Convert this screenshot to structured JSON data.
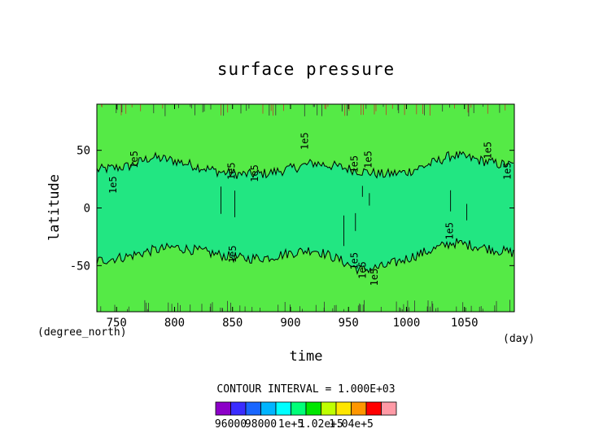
{
  "chart_data": {
    "type": "heatmap",
    "title": "surface pressure",
    "xlabel": "time",
    "ylabel": "latitude",
    "x_unit": "(day)",
    "y_unit": "(degree_north)",
    "xlim": [
      733,
      1093
    ],
    "ylim": [
      -90,
      90
    ],
    "x_ticks": [
      750,
      800,
      850,
      900,
      950,
      1000,
      1050
    ],
    "y_ticks": [
      50,
      0,
      -50
    ],
    "contour_interval_text": "CONTOUR INTERVAL = 1.000E+03",
    "contour_labels": [
      "1e5"
    ],
    "boundary_contours": [
      {
        "level": 100000,
        "points": [
          [
            733,
            33
          ],
          [
            760,
            36
          ],
          [
            780,
            44
          ],
          [
            800,
            41
          ],
          [
            820,
            36
          ],
          [
            840,
            31
          ],
          [
            860,
            29
          ],
          [
            880,
            30
          ],
          [
            900,
            34
          ],
          [
            920,
            39
          ],
          [
            940,
            36
          ],
          [
            960,
            32
          ],
          [
            980,
            29
          ],
          [
            1000,
            31
          ],
          [
            1020,
            38
          ],
          [
            1040,
            46
          ],
          [
            1060,
            42
          ],
          [
            1080,
            38
          ],
          [
            1093,
            37
          ]
        ]
      },
      {
        "level": 100000,
        "points": [
          [
            733,
            -46
          ],
          [
            760,
            -42
          ],
          [
            780,
            -37
          ],
          [
            800,
            -34
          ],
          [
            820,
            -37
          ],
          [
            840,
            -41
          ],
          [
            860,
            -44
          ],
          [
            880,
            -43
          ],
          [
            900,
            -39
          ],
          [
            920,
            -36
          ],
          [
            940,
            -44
          ],
          [
            960,
            -54
          ],
          [
            980,
            -51
          ],
          [
            1000,
            -44
          ],
          [
            1020,
            -37
          ],
          [
            1040,
            -30
          ],
          [
            1060,
            -33
          ],
          [
            1080,
            -37
          ],
          [
            1093,
            -39
          ]
        ]
      }
    ],
    "levels": [
      95000,
      96000,
      97000,
      98000,
      99000,
      100000,
      101000,
      102000,
      103000,
      104000,
      105000
    ],
    "colorbar_colors": [
      "#8c00c8",
      "#3a2cff",
      "#1966ff",
      "#00b4ff",
      "#00ffff",
      "#00ff78",
      "#00e600",
      "#beff00",
      "#ffe600",
      "#ff9600",
      "#ff0000",
      "#ff9aa6"
    ],
    "colorbar_labels": [
      "96000",
      "98000",
      "1e+5",
      "1.02e+5",
      "1.04e+5"
    ],
    "region_colors": {
      "tropics": "#22e682",
      "extratropics": "#55ea46"
    }
  }
}
